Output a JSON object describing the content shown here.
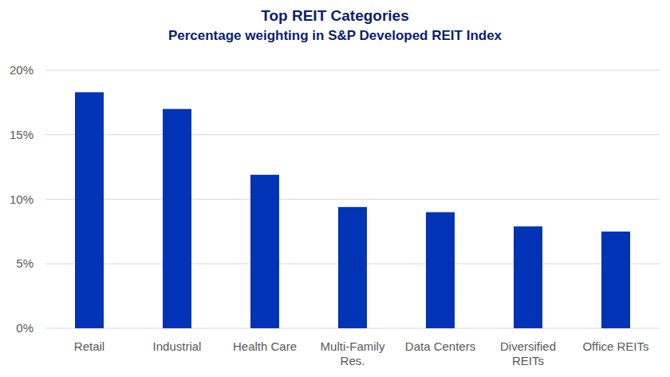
{
  "chart_data": {
    "type": "bar",
    "title": "Top REIT Categories",
    "subtitle": "Percentage weighting in S&P Developed REIT Index",
    "categories": [
      "Retail",
      "Industrial",
      "Health Care",
      "Multi-Family Res.",
      "Data Centers",
      "Diversified REITs",
      "Office REITs"
    ],
    "values": [
      18.3,
      17.0,
      11.9,
      9.4,
      9.0,
      7.9,
      7.5
    ],
    "color": "#0033b5",
    "ylim": [
      0,
      20
    ],
    "yticks": [
      {
        "value": 0,
        "label": "0%"
      },
      {
        "value": 5,
        "label": "5%"
      },
      {
        "value": 10,
        "label": "10%"
      },
      {
        "value": 15,
        "label": "15%"
      },
      {
        "value": 20,
        "label": "20%"
      }
    ],
    "grid": true
  }
}
